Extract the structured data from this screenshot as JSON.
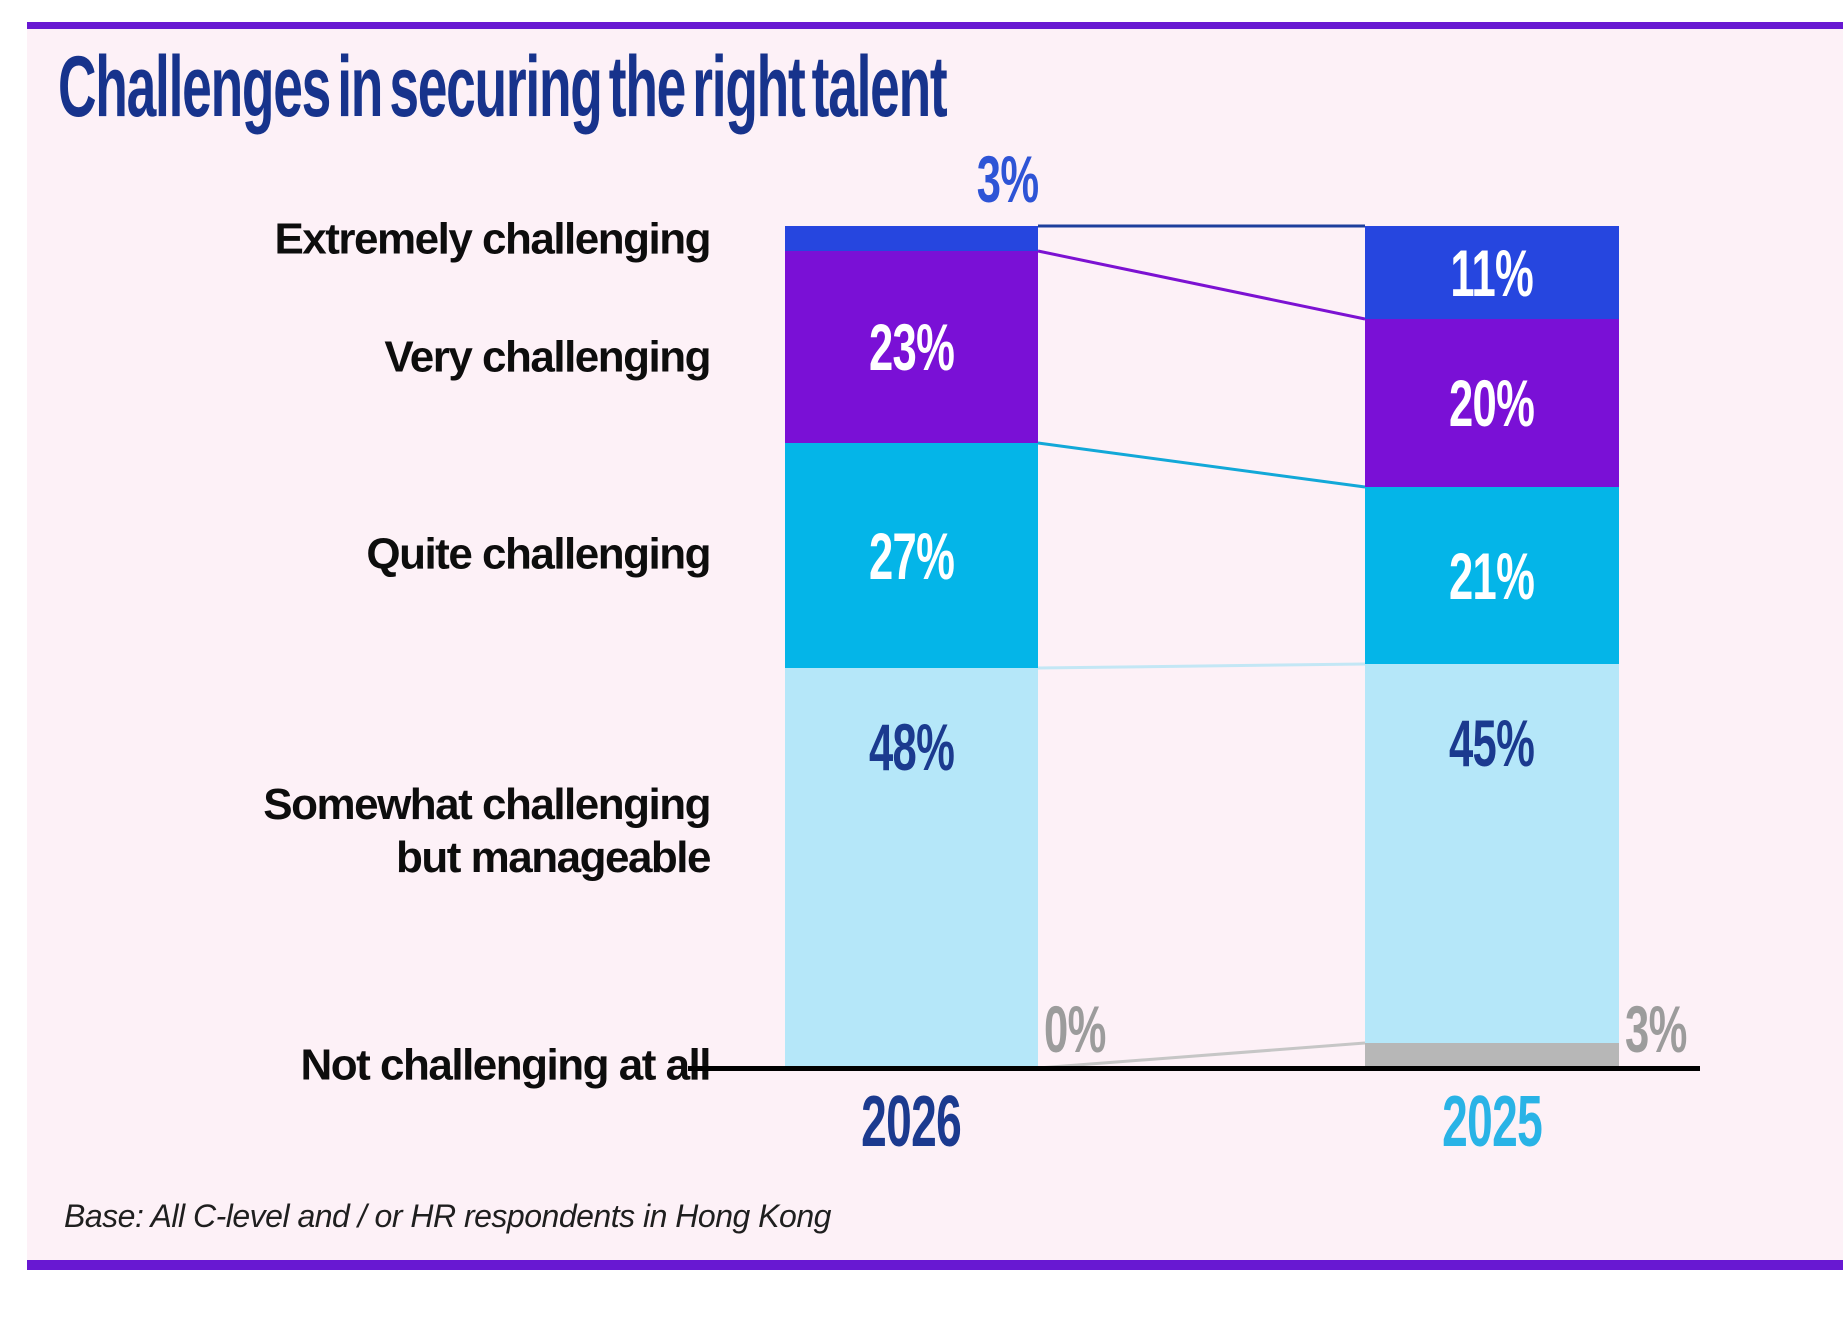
{
  "page": {
    "title": "Challenges in securing the right talent",
    "base_note": "Base: All C-level and / or HR respondents in Hong Kong"
  },
  "chart_data": {
    "type": "bar",
    "variant": "paired-stacked-columns",
    "title": "Challenges in securing the right talent",
    "categories": [
      "2026",
      "2025"
    ],
    "segments": [
      "Extremely challenging",
      "Very challenging",
      "Quite challenging",
      "Somewhat challenging but manageable",
      "Not challenging at all"
    ],
    "series": [
      {
        "name": "2026",
        "values": [
          3,
          23,
          27,
          48,
          0
        ],
        "labels": [
          "3%",
          "23%",
          "27%",
          "48%",
          "0%"
        ],
        "label_colors": [
          "#2e54d6",
          "#ffffff",
          "#ffffff",
          "#1b3a8f",
          "#9c9c9c"
        ],
        "label_pos": [
          "above",
          "inside",
          "inside",
          "inside",
          "right"
        ]
      },
      {
        "name": "2025",
        "values": [
          11,
          20,
          21,
          45,
          3
        ],
        "labels": [
          "11%",
          "20%",
          "21%",
          "45%",
          "3%"
        ],
        "label_colors": [
          "#ffffff",
          "#ffffff",
          "#ffffff",
          "#1b3a8f",
          "#9c9c9c"
        ],
        "label_pos": [
          "inside",
          "inside",
          "inside",
          "inside",
          "right"
        ]
      }
    ],
    "segment_colors": [
      "#2646df",
      "#7a10d6",
      "#04b5e8",
      "#b5e7f9",
      "#b7b7b7"
    ],
    "connector_colors": [
      "#1d3f9c",
      "#7c12d2",
      "#12a8d8",
      "#c3e7f5",
      "#c6c6c6"
    ],
    "category_label_colors": [
      "#1b3a8f",
      "#29b3e6"
    ],
    "axis_color": "#000000",
    "ylim": [
      0,
      100
    ],
    "grid": false,
    "legend": "none"
  }
}
